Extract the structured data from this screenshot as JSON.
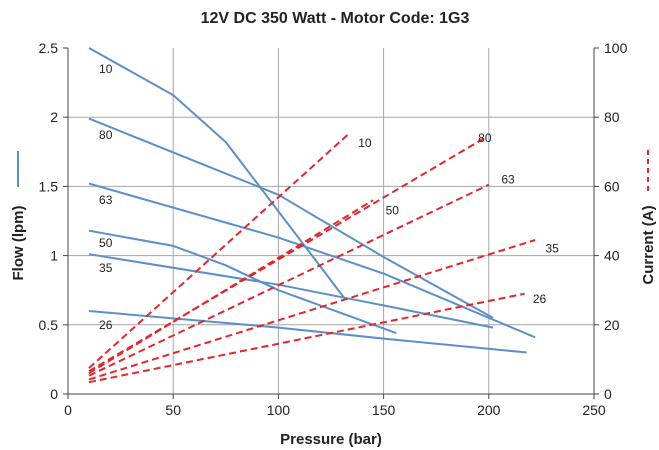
{
  "chart_data": {
    "type": "line",
    "title": "12V DC 350 Watt - Motor Code: 1G3",
    "xlabel": "Pressure (bar)",
    "ylabel": "Flow (lpm)",
    "y2label": "Current (A)",
    "xlim": [
      0,
      250
    ],
    "ylim": [
      0,
      2.5
    ],
    "y2lim": [
      0,
      100
    ],
    "x_ticks": [
      "0",
      "50",
      "100",
      "150",
      "200",
      "250"
    ],
    "y_ticks": [
      "0",
      "0.5",
      "1",
      "1.5",
      "2",
      "2.5"
    ],
    "y2_ticks": [
      "0",
      "20",
      "40",
      "60",
      "80",
      "100"
    ],
    "grid": true,
    "colors": {
      "flow": "#5b8fc9",
      "current": "#e3262b",
      "grid": "#a6a6a6",
      "axis": "#444444"
    },
    "flow_series": [
      {
        "name": "10",
        "points": [
          [
            10,
            2.5
          ],
          [
            50,
            2.16
          ],
          [
            75,
            1.82
          ],
          [
            100,
            1.32
          ],
          [
            132,
            0.68
          ]
        ]
      },
      {
        "name": "80",
        "points": [
          [
            10,
            1.99
          ],
          [
            100,
            1.44
          ],
          [
            150,
            0.99
          ],
          [
            202,
            0.55
          ]
        ]
      },
      {
        "name": "63",
        "points": [
          [
            10,
            1.52
          ],
          [
            100,
            1.13
          ],
          [
            150,
            0.87
          ],
          [
            222,
            0.41
          ]
        ]
      },
      {
        "name": "50",
        "points": [
          [
            10,
            1.18
          ],
          [
            50,
            1.07
          ],
          [
            75,
            0.93
          ],
          [
            100,
            0.75
          ],
          [
            156,
            0.44
          ]
        ]
      },
      {
        "name": "35",
        "points": [
          [
            10,
            1.01
          ],
          [
            100,
            0.79
          ],
          [
            150,
            0.64
          ],
          [
            202,
            0.48
          ]
        ]
      },
      {
        "name": "26",
        "points": [
          [
            10,
            0.6
          ],
          [
            100,
            0.48
          ],
          [
            150,
            0.4
          ],
          [
            218,
            0.3
          ]
        ]
      }
    ],
    "current_series": [
      {
        "name": "10",
        "points": [
          [
            10,
            7.5
          ],
          [
            134,
            75.5
          ]
        ]
      },
      {
        "name": "80",
        "points": [
          [
            10,
            6.6
          ],
          [
            198,
            74
          ]
        ]
      },
      {
        "name": "50",
        "points": [
          [
            10,
            6
          ],
          [
            145,
            56
          ]
        ]
      },
      {
        "name": "63",
        "points": [
          [
            10,
            5.3
          ],
          [
            200,
            60.5
          ]
        ]
      },
      {
        "name": "35",
        "points": [
          [
            10,
            4.2
          ],
          [
            222,
            44.5
          ]
        ]
      },
      {
        "name": "26",
        "points": [
          [
            10,
            3.4
          ],
          [
            217,
            29
          ]
        ]
      }
    ],
    "flow_label_anchors": [
      {
        "name": "10",
        "x": 10,
        "y": 2.35
      },
      {
        "name": "80",
        "x": 10,
        "y": 1.87
      },
      {
        "name": "63",
        "x": 10,
        "y": 1.4
      },
      {
        "name": "50",
        "x": 10,
        "y": 1.09
      },
      {
        "name": "35",
        "x": 10,
        "y": 0.91
      },
      {
        "name": "26",
        "x": 10,
        "y": 0.5
      }
    ],
    "current_label_anchors": [
      {
        "name": "10",
        "x": 137,
        "y": 72.5
      },
      {
        "name": "80",
        "x": 194,
        "y": 74
      },
      {
        "name": "63",
        "x": 205,
        "y": 62
      },
      {
        "name": "50",
        "x": 150,
        "y": 53
      },
      {
        "name": "35",
        "x": 226,
        "y": 42
      },
      {
        "name": "26",
        "x": 220,
        "y": 27.5
      }
    ]
  }
}
